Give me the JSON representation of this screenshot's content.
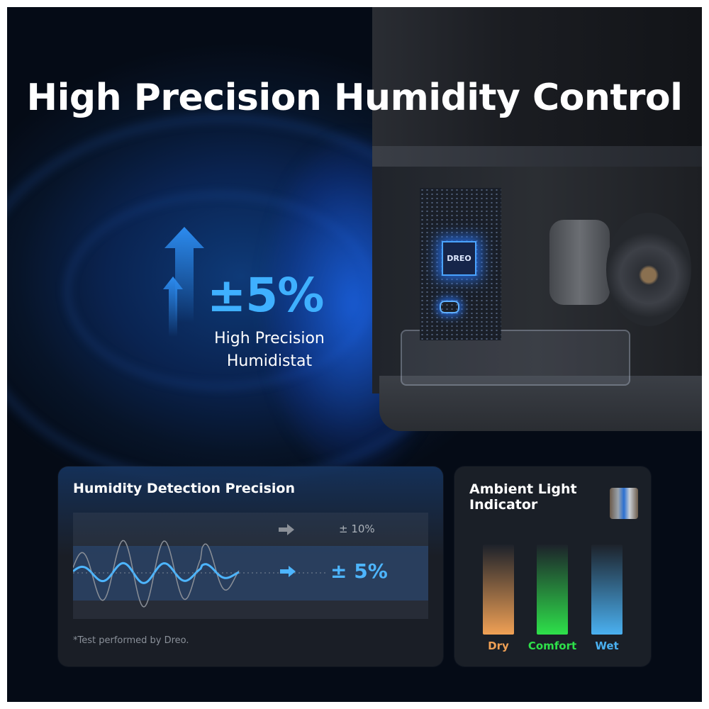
{
  "headline": "High Precision Humidity Control",
  "stat": {
    "value": "±5%",
    "label_line1": "High Precision",
    "label_line2": "Humidistat"
  },
  "device": {
    "chip_label": "DREO"
  },
  "precision_card": {
    "title": "Humidity Detection Precision",
    "comparison": [
      {
        "label": "± 10%",
        "color": "#aab0b8"
      },
      {
        "label": "± 5%",
        "color": "#4db5ff"
      }
    ],
    "footnote": "*Test performed by Dreo."
  },
  "chart_data": {
    "type": "line",
    "series": [
      {
        "label_ref": "± 10%",
        "amplitude_pct": 10,
        "color": "#8a8f97"
      },
      {
        "label_ref": "± 5%",
        "amplitude_pct": 5,
        "color": "#4db5ff"
      }
    ]
  },
  "light_card": {
    "title_line1": "Ambient Light",
    "title_line2": "Indicator",
    "indicators": [
      {
        "label": "Dry",
        "color": "#f0a055"
      },
      {
        "label": "Comfort",
        "color": "#2ee04a"
      },
      {
        "label": "Wet",
        "color": "#4ab0f0"
      }
    ]
  }
}
